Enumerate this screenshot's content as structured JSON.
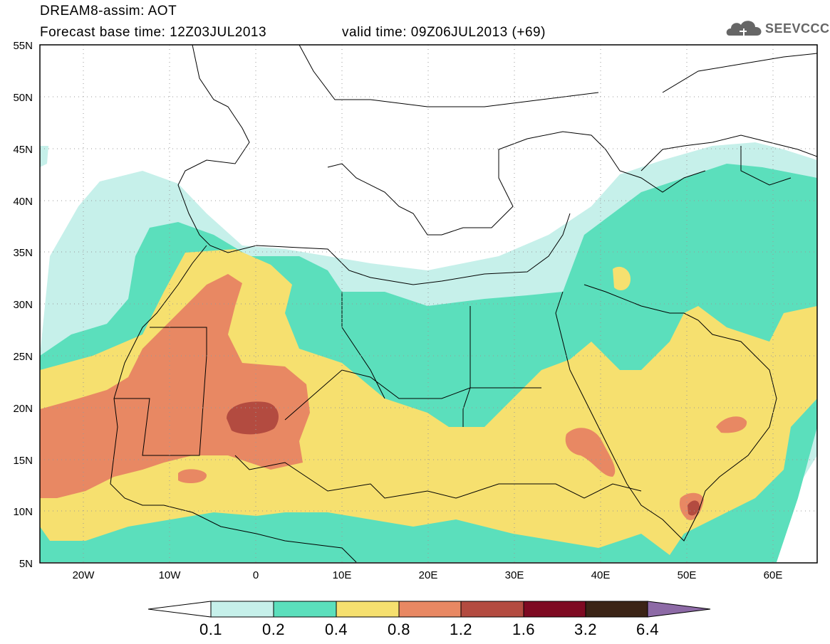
{
  "header": {
    "line1": "DREAM8-assim: AOT",
    "line2": "Forecast base time: 12Z03JUL2013",
    "valid": "valid time: 09Z06JUL2013 (+69)"
  },
  "logo": {
    "text": "SEEVCCC",
    "icon": "cloud-logo-icon"
  },
  "map": {
    "lon_range": [
      -25,
      65
    ],
    "lat_range": [
      5,
      55
    ],
    "lat_ticks": [
      "5N",
      "10N",
      "15N",
      "20N",
      "25N",
      "30N",
      "35N",
      "40N",
      "45N",
      "50N",
      "55N"
    ],
    "lon_ticks": [
      "20W",
      "10W",
      "0",
      "10E",
      "20E",
      "30E",
      "40E",
      "50E",
      "60E"
    ],
    "grid": "dotted"
  },
  "colorbar": {
    "labels": [
      "0.1",
      "0.2",
      "0.4",
      "0.8",
      "1.2",
      "1.6",
      "3.2",
      "6.4"
    ],
    "colors": [
      "#ffffff",
      "#c6f0ea",
      "#5bdfbc",
      "#f6e06f",
      "#e88863",
      "#b34b40",
      "#7e0a22",
      "#3b2416",
      "#8d6aa6"
    ]
  }
}
